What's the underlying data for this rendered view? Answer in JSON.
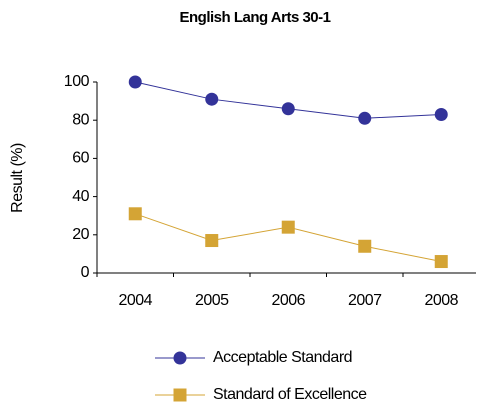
{
  "chart_data": {
    "type": "line",
    "title": "English Lang Arts 30-1",
    "y_label": "Result (%)",
    "categories": [
      "2004",
      "2005",
      "2006",
      "2007",
      "2008"
    ],
    "series": [
      {
        "name": "Acceptable Standard",
        "color": "#333399",
        "marker": "circle",
        "values": [
          100,
          91,
          86,
          81,
          83
        ]
      },
      {
        "name": "Standard of Excellence",
        "color": "#d4a435",
        "marker": "square",
        "values": [
          31,
          17,
          24,
          14,
          6
        ]
      }
    ],
    "ylim": [
      0,
      100
    ],
    "yticks": [
      0,
      20,
      40,
      60,
      80,
      100
    ],
    "grid": false
  }
}
